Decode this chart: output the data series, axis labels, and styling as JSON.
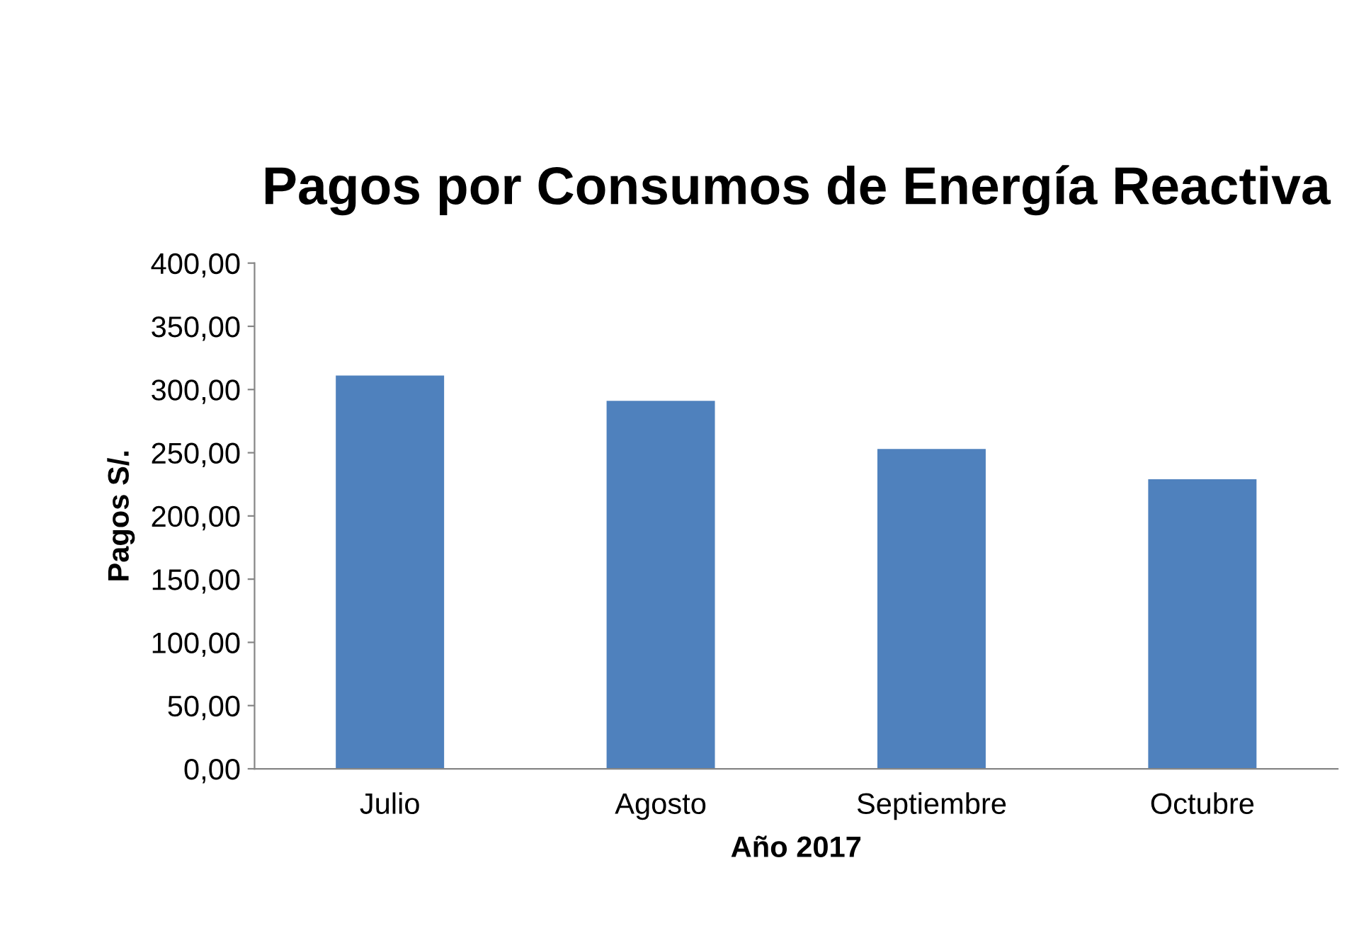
{
  "chart_data": {
    "type": "bar",
    "title": "Pagos por Consumos de Energía Reactiva",
    "xlabel": "Año 2017",
    "ylabel": "Pagos S/.",
    "categories": [
      "Julio",
      "Agosto",
      "Septiembre",
      "Octubre"
    ],
    "values": [
      311,
      291,
      253,
      229
    ],
    "color": "#4f81bd",
    "ylim": [
      0,
      400
    ],
    "yticks": [
      {
        "value": 0,
        "label": "0,00"
      },
      {
        "value": 50,
        "label": "50,00"
      },
      {
        "value": 100,
        "label": "100,00"
      },
      {
        "value": 150,
        "label": "150,00"
      },
      {
        "value": 200,
        "label": "200,00"
      },
      {
        "value": 250,
        "label": "250,00"
      },
      {
        "value": 300,
        "label": "300,00"
      },
      {
        "value": 350,
        "label": "350,00"
      },
      {
        "value": 400,
        "label": "400,00"
      }
    ],
    "grid": false,
    "legend": false
  }
}
